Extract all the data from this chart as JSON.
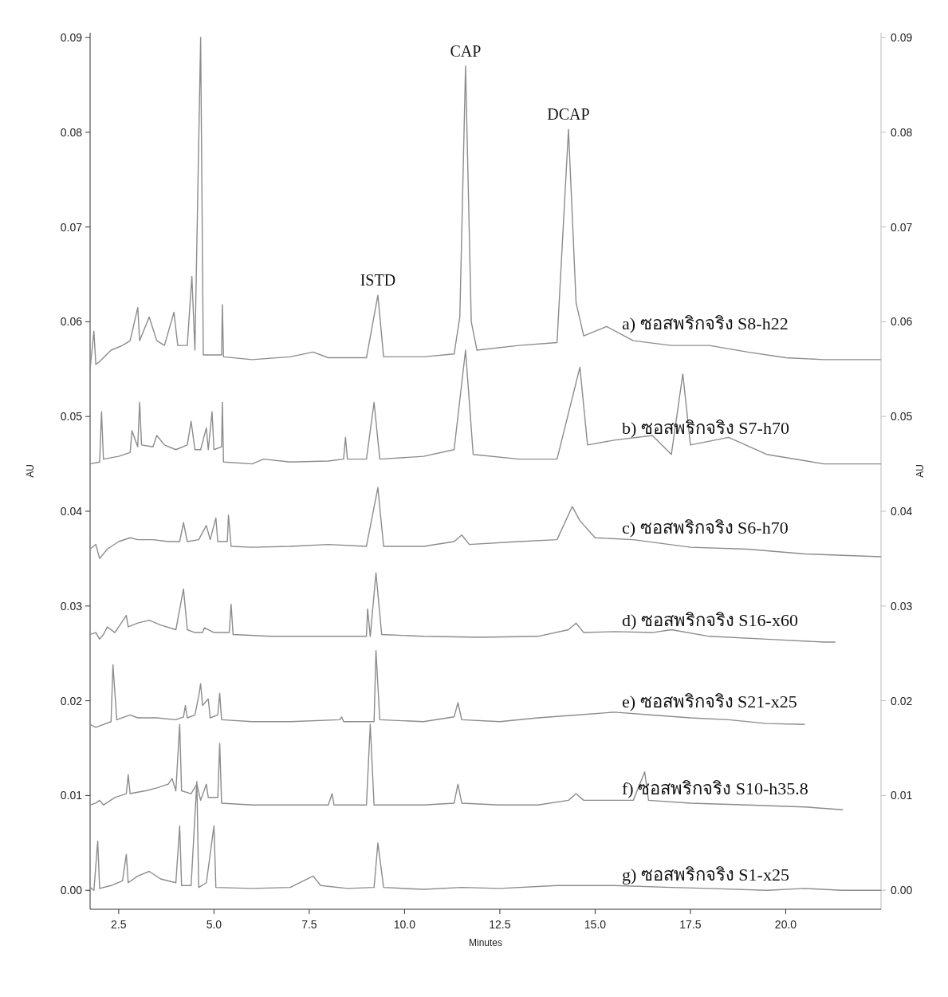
{
  "chart_data": {
    "type": "line",
    "xlabel": "Minutes",
    "ylabel": "AU",
    "y2label": "AU",
    "xlim": [
      1.75,
      22.5
    ],
    "ylim": [
      -0.002,
      0.0905
    ],
    "y2lim": [
      -0.002,
      0.0905
    ],
    "xticks": [
      2.5,
      {
        "value": 5,
        "label": "5.0"
      },
      7.5,
      {
        "value": 10,
        "label": "10.0"
      },
      12.5,
      {
        "value": 15,
        "label": "15.0"
      },
      17.5,
      {
        "value": 20,
        "label": "20.0"
      }
    ],
    "yticks": [
      {
        "value": 0,
        "label": "0.00"
      },
      0.01,
      0.02,
      0.03,
      0.04,
      0.05,
      0.06,
      0.07,
      0.08,
      0.09
    ],
    "y2ticks": [
      {
        "value": 0,
        "label": "0.00"
      },
      0.01,
      0.02,
      0.03,
      0.04,
      0.05,
      0.06,
      0.07,
      0.08,
      0.09
    ],
    "annotations": [
      {
        "text": "ISTD",
        "x": 9.3,
        "y": 0.0628
      },
      {
        "text": "CAP",
        "x": 11.6,
        "y": 0.087
      },
      {
        "text": "DCAP",
        "x": 14.3,
        "y": 0.0803
      }
    ],
    "series": [
      {
        "name": "a) ซอสพริกจริง S8-h22",
        "color": "#8c8c8c",
        "x": [
          1.75,
          1.85,
          1.9,
          2.0,
          2.3,
          2.6,
          2.8,
          3.0,
          3.05,
          3.3,
          3.5,
          3.7,
          3.95,
          4.05,
          4.3,
          4.42,
          4.5,
          4.65,
          4.72,
          4.9,
          5.2,
          5.22,
          5.25,
          6.0,
          7.0,
          7.6,
          8.0,
          9.0,
          9.3,
          9.45,
          10.5,
          11.3,
          11.45,
          11.6,
          11.75,
          11.9,
          13.0,
          14.0,
          14.3,
          14.5,
          14.7,
          15.3,
          16.0,
          17.0,
          18.0,
          19.0,
          20.0,
          21.0,
          22.5
        ],
        "values": [
          0.055,
          0.059,
          0.0555,
          0.0558,
          0.057,
          0.0575,
          0.058,
          0.0615,
          0.058,
          0.0605,
          0.058,
          0.0575,
          0.061,
          0.0575,
          0.0575,
          0.0648,
          0.057,
          0.09,
          0.0565,
          0.0565,
          0.0565,
          0.0618,
          0.0563,
          0.056,
          0.0563,
          0.0568,
          0.0562,
          0.0562,
          0.0628,
          0.0563,
          0.0563,
          0.0566,
          0.0605,
          0.087,
          0.06,
          0.057,
          0.0575,
          0.0578,
          0.0803,
          0.062,
          0.0585,
          0.0595,
          0.058,
          0.0575,
          0.0575,
          0.0568,
          0.0562,
          0.056,
          0.056
        ]
      },
      {
        "name": "b) ซอสพริกจริง S7-h70",
        "color": "#8c8c8c",
        "x": [
          1.75,
          2.0,
          2.05,
          2.1,
          2.5,
          2.8,
          2.85,
          3.0,
          3.05,
          3.1,
          3.4,
          3.5,
          3.7,
          4.0,
          4.3,
          4.4,
          4.5,
          4.65,
          4.8,
          4.85,
          4.95,
          5.0,
          5.2,
          5.22,
          5.25,
          6.0,
          6.3,
          7.0,
          8.0,
          8.4,
          8.45,
          8.5,
          9.0,
          9.2,
          9.35,
          10.5,
          11.3,
          11.6,
          11.8,
          13.0,
          14.0,
          14.6,
          14.8,
          15.5,
          16.5,
          17.0,
          17.3,
          17.5,
          18.5,
          19.5,
          21.0,
          22.5
        ],
        "values": [
          0.045,
          0.0452,
          0.0505,
          0.0455,
          0.0458,
          0.0462,
          0.0485,
          0.0468,
          0.0515,
          0.047,
          0.0468,
          0.048,
          0.047,
          0.0465,
          0.047,
          0.0495,
          0.0465,
          0.0465,
          0.0488,
          0.0465,
          0.0505,
          0.0465,
          0.0468,
          0.0515,
          0.0452,
          0.045,
          0.0455,
          0.0452,
          0.0453,
          0.0455,
          0.0478,
          0.0455,
          0.0455,
          0.0515,
          0.0455,
          0.0458,
          0.0465,
          0.057,
          0.046,
          0.0455,
          0.0455,
          0.0552,
          0.047,
          0.0475,
          0.048,
          0.046,
          0.0545,
          0.047,
          0.0478,
          0.046,
          0.045,
          0.045
        ]
      },
      {
        "name": "c) ซอสพริกจริง S6-h70",
        "color": "#8c8c8c",
        "x": [
          1.75,
          1.9,
          2.0,
          2.2,
          2.5,
          2.8,
          3.0,
          3.4,
          3.8,
          4.1,
          4.2,
          4.3,
          4.6,
          4.8,
          4.9,
          5.05,
          5.1,
          5.35,
          5.38,
          5.45,
          6.0,
          7.0,
          8.0,
          9.0,
          9.3,
          9.45,
          10.5,
          11.3,
          11.5,
          11.7,
          13.0,
          14.0,
          14.4,
          14.6,
          15.0,
          16.0,
          17.5,
          19.0,
          20.5,
          22.5
        ],
        "values": [
          0.036,
          0.0365,
          0.035,
          0.036,
          0.0368,
          0.0372,
          0.037,
          0.037,
          0.0368,
          0.0368,
          0.0388,
          0.0368,
          0.037,
          0.0385,
          0.037,
          0.0393,
          0.0368,
          0.0368,
          0.0396,
          0.0363,
          0.0362,
          0.0363,
          0.0365,
          0.0363,
          0.0425,
          0.0363,
          0.0363,
          0.0368,
          0.0375,
          0.0365,
          0.0368,
          0.037,
          0.0405,
          0.039,
          0.0372,
          0.037,
          0.0362,
          0.036,
          0.0355,
          0.0352
        ]
      },
      {
        "name": "d) ซอสพริกจริง S16-x60",
        "color": "#8c8c8c",
        "x": [
          1.75,
          1.9,
          2.0,
          2.1,
          2.2,
          2.4,
          2.7,
          2.75,
          3.0,
          3.3,
          3.6,
          4.0,
          4.2,
          4.3,
          4.5,
          4.7,
          4.75,
          5.0,
          5.4,
          5.45,
          5.5,
          6.5,
          7.5,
          9.0,
          9.03,
          9.1,
          9.25,
          9.4,
          10.5,
          12.0,
          13.5,
          14.3,
          14.5,
          14.7,
          15.5,
          16.5,
          17.0,
          18.0,
          19.5,
          21.0,
          21.3
        ],
        "values": [
          0.027,
          0.0272,
          0.0265,
          0.027,
          0.0278,
          0.0272,
          0.029,
          0.0278,
          0.0282,
          0.0285,
          0.028,
          0.0275,
          0.0318,
          0.0275,
          0.0272,
          0.0272,
          0.0277,
          0.0272,
          0.0272,
          0.0302,
          0.027,
          0.0268,
          0.0268,
          0.0268,
          0.0297,
          0.0268,
          0.0335,
          0.027,
          0.0268,
          0.0267,
          0.0268,
          0.0275,
          0.0282,
          0.0272,
          0.0273,
          0.0272,
          0.0275,
          0.0268,
          0.0265,
          0.0262,
          0.0262
        ]
      },
      {
        "name": "e) ซอสพริกจริง S21-x25",
        "color": "#8c8c8c",
        "x": [
          1.75,
          1.9,
          2.1,
          2.3,
          2.35,
          2.45,
          2.8,
          3.0,
          3.5,
          4.0,
          4.2,
          4.25,
          4.3,
          4.5,
          4.6,
          4.65,
          4.7,
          4.85,
          4.9,
          5.1,
          5.15,
          5.2,
          6.0,
          7.0,
          8.3,
          8.35,
          8.4,
          9.2,
          9.25,
          9.35,
          10.5,
          11.3,
          11.4,
          11.5,
          12.5,
          13.5,
          14.5,
          15.5,
          16.5,
          17.5,
          18.5,
          19.5,
          20.5
        ],
        "values": [
          0.0175,
          0.0172,
          0.0175,
          0.0178,
          0.0238,
          0.018,
          0.0185,
          0.0182,
          0.0182,
          0.018,
          0.0183,
          0.0195,
          0.0182,
          0.0185,
          0.0205,
          0.0218,
          0.0195,
          0.0202,
          0.0182,
          0.0185,
          0.0208,
          0.018,
          0.0178,
          0.0178,
          0.018,
          0.0183,
          0.0178,
          0.0178,
          0.0253,
          0.018,
          0.0178,
          0.0183,
          0.0198,
          0.018,
          0.0178,
          0.0182,
          0.0185,
          0.0188,
          0.0185,
          0.0182,
          0.018,
          0.0176,
          0.0175
        ]
      },
      {
        "name": "f) ซอสพริกจริง S10-h35.8",
        "color": "#8c8c8c",
        "x": [
          1.75,
          1.9,
          2.0,
          2.1,
          2.4,
          2.7,
          2.75,
          2.8,
          3.2,
          3.5,
          3.8,
          3.9,
          4.0,
          4.1,
          4.15,
          4.4,
          4.55,
          4.65,
          4.8,
          4.85,
          5.1,
          5.15,
          5.2,
          6.0,
          7.0,
          8.0,
          8.1,
          8.15,
          9.0,
          9.1,
          9.2,
          10.5,
          11.3,
          11.4,
          11.5,
          12.5,
          13.5,
          14.3,
          14.5,
          14.7,
          16.0,
          16.3,
          16.4,
          17.5,
          19.0,
          20.5,
          21.5
        ],
        "values": [
          0.009,
          0.0092,
          0.0095,
          0.009,
          0.0098,
          0.0102,
          0.0122,
          0.0102,
          0.0105,
          0.0108,
          0.0112,
          0.0118,
          0.0105,
          0.0175,
          0.0105,
          0.0102,
          0.0112,
          0.0095,
          0.0112,
          0.0098,
          0.0098,
          0.0155,
          0.0092,
          0.009,
          0.009,
          0.009,
          0.0102,
          0.009,
          0.009,
          0.0175,
          0.009,
          0.009,
          0.0092,
          0.0112,
          0.0092,
          0.009,
          0.009,
          0.0095,
          0.0102,
          0.0095,
          0.0095,
          0.0125,
          0.0095,
          0.0092,
          0.009,
          0.0088,
          0.0085
        ]
      },
      {
        "name": "g) ซอสพริกจริง S1-x25",
        "color": "#8c8c8c",
        "x": [
          1.75,
          1.85,
          1.95,
          2.0,
          2.3,
          2.6,
          2.7,
          2.75,
          3.0,
          3.3,
          3.6,
          4.0,
          4.1,
          4.15,
          4.4,
          4.55,
          4.6,
          4.8,
          5.0,
          5.05,
          6.0,
          7.0,
          7.6,
          7.8,
          8.5,
          9.2,
          9.3,
          9.45,
          10.5,
          11.5,
          12.5,
          14.0,
          15.5,
          17.0,
          18.0,
          19.5,
          20.5,
          21.5,
          22.5
        ],
        "values": [
          0.0003,
          0.0,
          0.0052,
          0.0002,
          0.0005,
          0.001,
          0.0038,
          0.0008,
          0.0015,
          0.002,
          0.0012,
          0.0008,
          0.0068,
          0.0005,
          0.0005,
          0.0115,
          0.0003,
          0.0008,
          0.0068,
          0.0003,
          0.0002,
          0.0003,
          0.0015,
          0.0005,
          0.0002,
          0.0003,
          0.005,
          0.0003,
          0.0001,
          0.0003,
          0.0002,
          0.0005,
          0.0005,
          0.0003,
          0.0002,
          0.0,
          0.0002,
          0.0,
          0.0
        ]
      }
    ]
  }
}
